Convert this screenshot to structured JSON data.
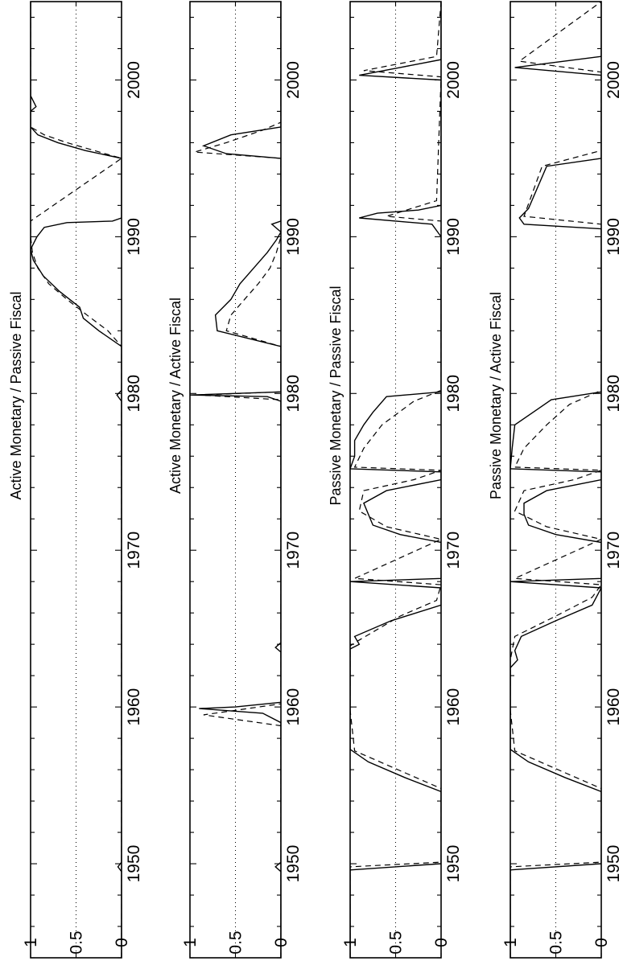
{
  "figure": {
    "orientation": "rotated 90 degrees counter-clockwise",
    "line_color": "#000000",
    "background": "#ffffff"
  },
  "chart_data": [
    {
      "type": "line",
      "title": "Active Monetary / Passive Fiscal",
      "xlabel": "",
      "ylabel": "",
      "xlim": [
        1944,
        2005
      ],
      "ylim": [
        0,
        1
      ],
      "x_ticks": [
        1950,
        1960,
        1970,
        1980,
        1990,
        2000
      ],
      "y_ticks": [
        0,
        0.5,
        1
      ],
      "y_tick_labels": [
        "0",
        "0.5",
        "1"
      ],
      "grid": "dotted line at 0.5",
      "series": [
        {
          "style": "solid",
          "x": [
            1944,
            1949.5,
            1949.8,
            1950.1,
            1979.5,
            1979.9,
            1980.2,
            1983,
            1984,
            1984.8,
            1985.5,
            1986.5,
            1987.5,
            1988.5,
            1989.2,
            1990,
            1990.6,
            1990.9,
            1991,
            1991.2,
            1995,
            1995.5,
            1996,
            1996.5,
            1997,
            1998,
            1998.3,
            1999,
            2000,
            2008.2,
            2008.5,
            2009
          ],
          "y": [
            0,
            0,
            0.04,
            0,
            0,
            0.05,
            0,
            0,
            0.25,
            0.42,
            0.46,
            0.68,
            0.86,
            0.97,
            1.0,
            0.93,
            0.85,
            0.6,
            0.1,
            0,
            0,
            0.4,
            0.7,
            0.92,
            1.0,
            1.0,
            0.94,
            1.0,
            1.0,
            1.0,
            0.4,
            0
          ]
        },
        {
          "style": "dashed",
          "x": [
            1944,
            1983,
            1984,
            1985,
            1986,
            1987,
            1988,
            1989,
            1990,
            1991,
            1995,
            1995.5,
            1996,
            1996.5,
            1997,
            2000,
            2008,
            2008.4,
            2009
          ],
          "y": [
            0,
            0,
            0.15,
            0.38,
            0.6,
            0.8,
            0.92,
            0.98,
            1.0,
            1.0,
            0,
            0.3,
            0.6,
            0.85,
            1.0,
            1.0,
            1.0,
            0.5,
            0
          ]
        }
      ]
    },
    {
      "type": "line",
      "title": "Active Monetary / Active Fiscal",
      "xlabel": "",
      "ylabel": "",
      "xlim": [
        1944,
        2005
      ],
      "ylim": [
        0,
        1
      ],
      "x_ticks": [
        1950,
        1960,
        1970,
        1980,
        1990,
        2000
      ],
      "y_ticks": [
        0,
        0.5,
        1
      ],
      "y_tick_labels": [
        "0",
        "0.5",
        "1"
      ],
      "grid": "dotted line at 0.5",
      "series": [
        {
          "style": "solid",
          "x": [
            1944,
            1949.5,
            1949.8,
            1950.1,
            1959,
            1959.6,
            1959.9,
            1960,
            1960.3,
            1963.5,
            1963.8,
            1964.1,
            1979.5,
            1979.8,
            1979.9,
            1980.1,
            1983,
            1984,
            1985,
            1986,
            1987,
            1988,
            1989,
            1989.8,
            1990.3,
            1990.8,
            1991,
            1995,
            1995.3,
            1995.8,
            1996.5,
            1997,
            2005
          ],
          "y": [
            0,
            0,
            0.06,
            0,
            0,
            0.2,
            0.9,
            0.5,
            0,
            0,
            0.06,
            0,
            0,
            0.15,
            1.0,
            0,
            0,
            0.7,
            0.72,
            0.55,
            0.45,
            0.3,
            0.15,
            0.05,
            0,
            0.1,
            0,
            0,
            0.6,
            0.85,
            0.55,
            0,
            0
          ]
        },
        {
          "style": "dashed",
          "x": [
            1944,
            1958.8,
            1959.5,
            1960.2,
            1979.6,
            1979.9,
            1980.1,
            1983,
            1984,
            1985,
            1986,
            1987,
            1988,
            1989,
            1990,
            1995,
            1995.4,
            1996,
            1996.8,
            1997.3,
            2005
          ],
          "y": [
            0,
            0,
            0.85,
            0,
            0,
            0.9,
            0,
            0,
            0.6,
            0.55,
            0.4,
            0.25,
            0.12,
            0.05,
            0,
            0,
            0.95,
            0.6,
            0.2,
            0,
            0
          ]
        }
      ]
    },
    {
      "type": "line",
      "title": "Passive Monetary / Passive Fiscal",
      "xlabel": "",
      "ylabel": "",
      "xlim": [
        1944,
        2005
      ],
      "ylim": [
        0,
        1
      ],
      "x_ticks": [
        1950,
        1960,
        1970,
        1980,
        1990,
        2000
      ],
      "y_ticks": [
        0,
        0.5,
        1
      ],
      "y_tick_labels": [
        "0",
        "0.5",
        "1"
      ],
      "grid": "dotted line at 0.5",
      "series": [
        {
          "style": "solid",
          "x": [
            1944,
            1949.6,
            1950,
            1951,
            1954.6,
            1955.5,
            1956.5,
            1957.3,
            1959,
            1959.6,
            1960.2,
            1963.7,
            1964,
            1964.5,
            1965.5,
            1966.5,
            1967.6,
            1968,
            1968.2,
            1970.5,
            1971,
            1971.6,
            1972.3,
            1973,
            1973.8,
            1974.5,
            1975,
            1975.2,
            1976,
            1977,
            1978,
            1978.8,
            1979.8,
            1980.1,
            1990,
            1990.8,
            1991.2,
            1991.5,
            1991.7,
            1992,
            1992.2,
            2000,
            2000.3,
            2000.8,
            2001.3,
            2005
          ],
          "y": [
            1,
            1,
            0,
            0,
            0,
            0.4,
            0.8,
            1.0,
            1,
            1,
            1,
            1,
            0.9,
            0.95,
            0.55,
            0,
            0,
            1.0,
            0,
            0,
            0.45,
            0.75,
            0.8,
            0.85,
            0.6,
            0,
            0,
            1.0,
            0.95,
            0.95,
            0.85,
            0.75,
            0.6,
            0,
            0,
            0.1,
            0.9,
            0.7,
            0.25,
            0,
            0,
            0,
            0.9,
            0.45,
            0,
            0
          ]
        },
        {
          "style": "dashed",
          "x": [
            1944,
            1949.8,
            1950.1,
            1954.8,
            1957.2,
            1959.8,
            1963.9,
            1964.2,
            1965.8,
            1966.8,
            1967.8,
            1968.2,
            1970.7,
            1971.5,
            1972.5,
            1973.8,
            1974.5,
            1975.1,
            1975.3,
            1976.5,
            1978,
            1979.5,
            1980.2,
            1991,
            1991.3,
            1992.3,
            2000.2,
            2000.6,
            2001.5,
            2005
          ],
          "y": [
            1,
            1,
            0,
            0,
            0.95,
            1,
            1,
            0.92,
            0.45,
            0.05,
            0,
            0.95,
            0,
            0.6,
            0.9,
            0.85,
            0.3,
            0,
            0.95,
            0.85,
            0.65,
            0.3,
            0,
            0,
            0.6,
            0.05,
            0,
            0.85,
            0.05,
            0
          ]
        }
      ]
    },
    {
      "type": "line",
      "title": "Passive Monetary / Active Fiscal",
      "xlabel": "",
      "ylabel": "",
      "xlim": [
        1944,
        2005
      ],
      "ylim": [
        0,
        1
      ],
      "x_ticks": [
        1950,
        1960,
        1970,
        1980,
        1990,
        2000
      ],
      "y_ticks": [
        0,
        0.5,
        1
      ],
      "y_tick_labels": [
        "0",
        "0.5",
        "1"
      ],
      "grid": "dotted line at 0.5",
      "series": [
        {
          "style": "solid",
          "x": [
            1944,
            1949.6,
            1950,
            1951,
            1954.6,
            1955.5,
            1956.5,
            1957.3,
            1959,
            1959.6,
            1960.2,
            1962.5,
            1963,
            1963.6,
            1964.5,
            1965.5,
            1966.5,
            1967.6,
            1968,
            1968.2,
            1970.5,
            1971,
            1971.6,
            1972.3,
            1973,
            1973.8,
            1974.5,
            1975,
            1975.2,
            1976.5,
            1978,
            1979,
            1979.6,
            1980.1,
            1990.5,
            1990.8,
            1991.2,
            1991.8,
            1994.5,
            1995,
            1996,
            2000.3,
            2000.8,
            2001.5,
            2005
          ],
          "y": [
            1,
            1,
            0,
            0,
            0,
            0.4,
            0.8,
            1.0,
            1,
            1,
            1,
            1,
            0.92,
            0.95,
            0.88,
            0.5,
            0.1,
            0,
            1.0,
            0,
            0,
            0.5,
            0.8,
            0.85,
            0.85,
            0.6,
            0,
            0,
            1.0,
            0.98,
            0.95,
            0.7,
            0.55,
            0,
            0,
            0.85,
            0.9,
            0.8,
            0.6,
            0,
            0,
            0,
            0.95,
            0,
            0
          ]
        },
        {
          "style": "dashed",
          "x": [
            1944,
            1949.8,
            1950.1,
            1954.8,
            1957.2,
            1959.8,
            1963,
            1964.5,
            1965.8,
            1967,
            1967.8,
            1968.2,
            1970.7,
            1971.5,
            1972.5,
            1973.8,
            1974.5,
            1975.1,
            1975.3,
            1976.5,
            1978,
            1979.3,
            1980.2,
            1990.8,
            1991.3,
            1994.5,
            1995.5,
            2000.5,
            2001.2,
            2005
          ],
          "y": [
            1,
            1,
            0,
            0,
            0.95,
            1,
            1,
            0.95,
            0.5,
            0.1,
            0,
            0.95,
            0,
            0.6,
            0.95,
            0.85,
            0.3,
            0,
            0.95,
            0.85,
            0.6,
            0.35,
            0,
            0,
            0.85,
            0.65,
            0,
            0,
            0.9,
            0
          ]
        }
      ]
    }
  ]
}
